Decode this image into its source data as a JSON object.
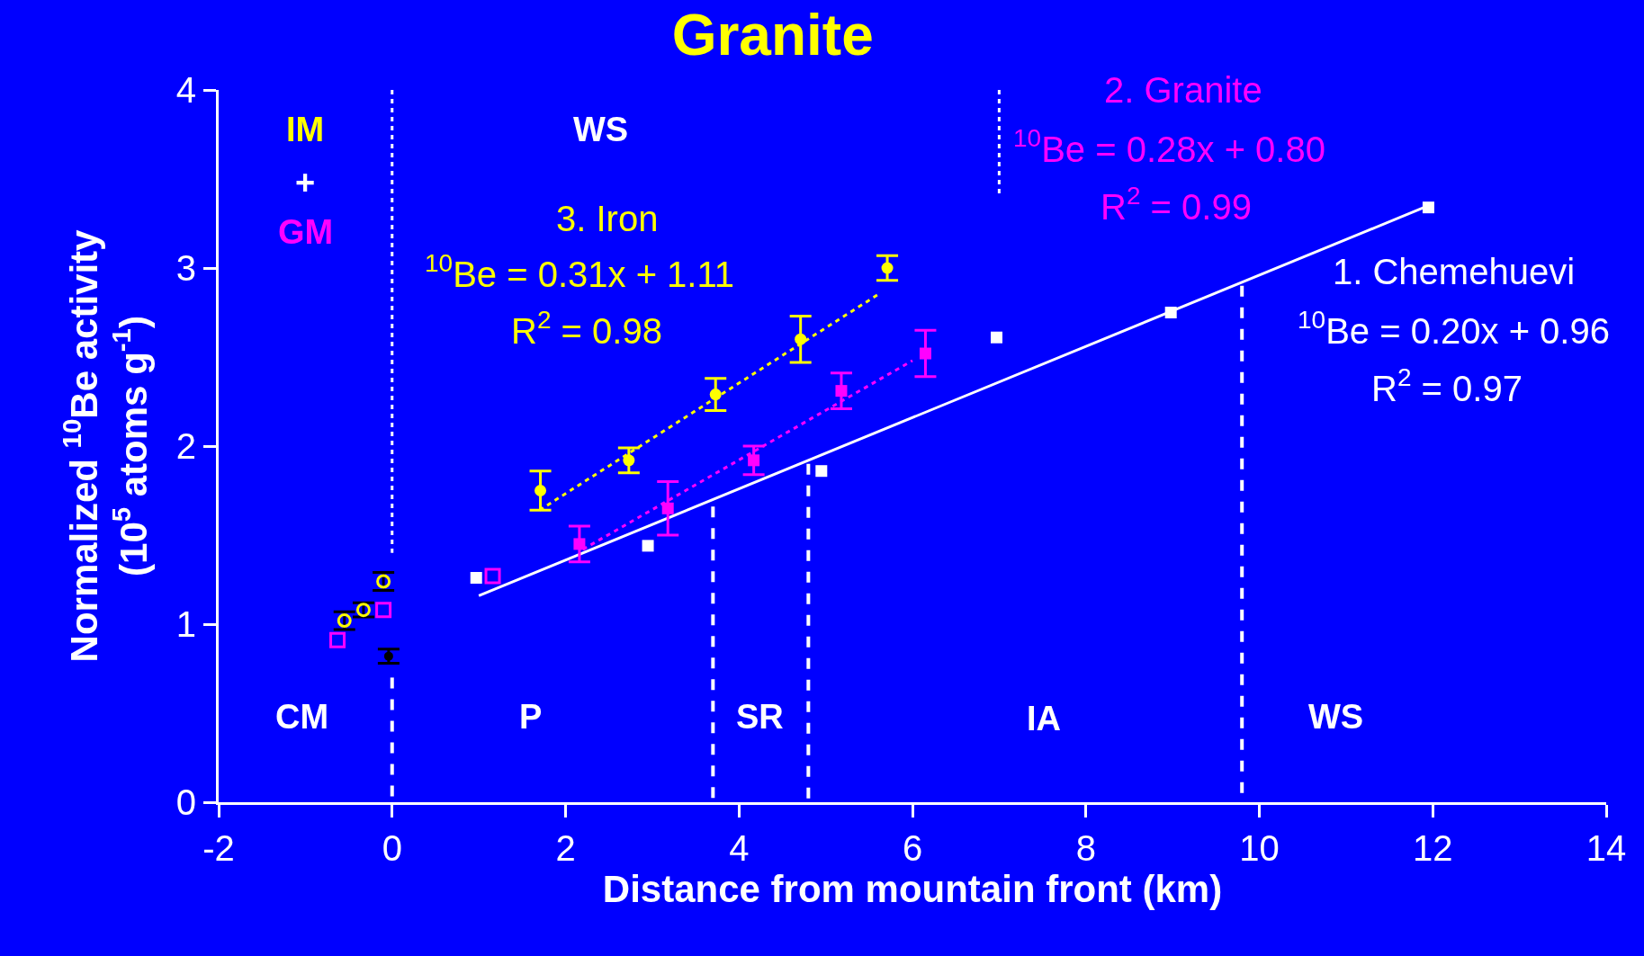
{
  "chart_data": {
    "type": "scatter",
    "title": "Granite",
    "xlabel": "Distance from mountain front (km)",
    "ylabel": "Normalized $^{10}$Be activity\n(10$^{5}$ atoms g$^{-1}$)",
    "xlim": [
      -2,
      14
    ],
    "xticks": [
      -2,
      0,
      2,
      4,
      6,
      8,
      10,
      12,
      14
    ],
    "ylim": [
      0,
      4
    ],
    "yticks": [
      0,
      1,
      2,
      3,
      4
    ],
    "series": [
      {
        "type": "scatter",
        "marker": "square",
        "color": "#ffffff",
        "x": [
          0.97,
          2.95,
          4.95,
          6.97,
          8.98,
          11.95
        ],
        "values": [
          1.26,
          1.44,
          1.86,
          2.61,
          2.75,
          3.34
        ]
      },
      {
        "type": "line",
        "marker": "none",
        "line_style": "solid",
        "color": "#ffffff",
        "x": [
          1,
          12
        ],
        "values": [
          1.16,
          3.36
        ]
      },
      {
        "type": "scatter",
        "marker": "square",
        "color": "#ff00ff",
        "x": [
          2.16,
          3.18,
          4.17,
          5.18,
          6.15
        ],
        "values": [
          1.45,
          1.65,
          1.92,
          2.31,
          2.52
        ],
        "errors": [
          0.1,
          0.15,
          0.08,
          0.1,
          0.13
        ]
      },
      {
        "type": "line",
        "marker": "none",
        "line_style": "dotted",
        "color": "#ff00ff",
        "x": [
          2.2,
          6.0
        ],
        "values": [
          1.42,
          2.48
        ]
      },
      {
        "type": "scatter",
        "marker": "circle",
        "color": "#ffff00",
        "x": [
          1.71,
          2.73,
          3.73,
          4.71,
          5.71
        ],
        "values": [
          1.75,
          1.92,
          2.29,
          2.6,
          3.0
        ],
        "errors": [
          0.11,
          0.07,
          0.09,
          0.13,
          0.07
        ]
      },
      {
        "type": "line",
        "marker": "none",
        "line_style": "dotted",
        "color": "#ffff00",
        "x": [
          1.7,
          5.6
        ],
        "values": [
          1.64,
          2.85
        ]
      },
      {
        "type": "scatter",
        "marker": "square",
        "color": "#ff00ff",
        "x": [
          1.16,
          -0.63,
          -0.1
        ],
        "values": [
          1.27,
          0.91,
          1.08
        ]
      },
      {
        "type": "scatter",
        "marker": "circle",
        "color": "#ffff00",
        "x": [
          -0.55,
          -0.33,
          -0.1
        ],
        "values": [
          1.02,
          1.08,
          1.24
        ],
        "errors": [
          0.05,
          0.04,
          0.05
        ]
      },
      {
        "type": "scatter",
        "marker": "circle",
        "color": "#000000",
        "x": [
          -0.04
        ],
        "values": [
          0.82
        ],
        "errors": [
          0.04
        ]
      },
      {
        "type": "line",
        "marker": "none",
        "line_style": "dashed",
        "color": "#ffffff",
        "x": [
          0,
          0
        ],
        "values": [
          0.7,
          0
        ]
      },
      {
        "type": "line",
        "marker": "none",
        "line_style": "dotted",
        "color": "#ffffff",
        "x": [
          0,
          0
        ],
        "values": [
          4,
          1.4
        ]
      },
      {
        "type": "line",
        "marker": "none",
        "line_style": "dashed",
        "color": "#ffffff",
        "x": [
          3.7,
          3.7
        ],
        "values": [
          1.66,
          0
        ]
      },
      {
        "type": "line",
        "marker": "none",
        "line_style": "dashed",
        "color": "#ffffff",
        "x": [
          4.8,
          4.8
        ],
        "values": [
          1.9,
          0
        ]
      },
      {
        "type": "line",
        "marker": "none",
        "line_style": "dashed",
        "color": "#ffffff",
        "x": [
          9.8,
          9.8
        ],
        "values": [
          2.9,
          0
        ]
      },
      {
        "type": "line",
        "marker": "none",
        "line_style": "dotted",
        "color": "#ffffff",
        "x": [
          7,
          7
        ],
        "values": [
          4,
          3.4
        ]
      }
    ],
    "annotations": [
      "CM",
      "P",
      "SR",
      "IA",
      "WS",
      "IM",
      "+",
      "GM",
      "WS",
      "3. Iron",
      "$^{10}$Be = 0.31x + 1.11",
      "R$^{2}$ = 0.98",
      "2. Granite",
      "$^{10}$Be = 0.28x + 0.80",
      "R$^{2}$ = 0.99",
      "1. Chemehuevi",
      "$^{10}$Be = 0.20x + 0.96",
      "R$^{2}$ = 0.97"
    ]
  }
}
